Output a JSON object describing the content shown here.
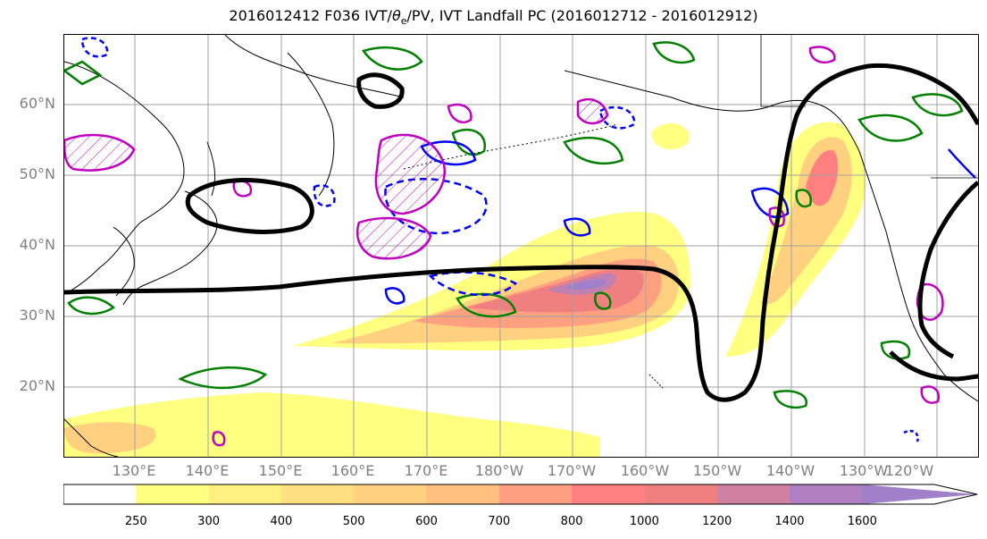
{
  "title_main": "2016012412 F036 IVT/",
  "title_theta": "θ",
  "title_sub": "e",
  "title_rest": "/PV, IVT Landfall PC (2016012712 - 2016012912)",
  "lat_labels": [
    "60°N",
    "50°N",
    "40°N",
    "30°N",
    "20°N"
  ],
  "lon_labels": [
    "130°E",
    "140°E",
    "150°E",
    "160°E",
    "170°E",
    "180°W",
    "170°W",
    "160°W",
    "150°W",
    "140°W",
    "130°W",
    "120°W"
  ],
  "colorbar": {
    "levels": [
      "250",
      "300",
      "400",
      "500",
      "600",
      "700",
      "800",
      "1000",
      "1200",
      "1400",
      "1600"
    ],
    "colors": [
      "#ffffff",
      "#ffff80",
      "#fff080",
      "#ffe080",
      "#ffd080",
      "#ffc080",
      "#ffa080",
      "#ff8080",
      "#f08080",
      "#d080a0",
      "#b080c0",
      "#a080c8"
    ]
  },
  "colors": {
    "land_outline": "#000000",
    "grid": "#a0a0a0",
    "pc_contour": "#000000",
    "theta_e": "#008000",
    "pv_positive": "#c000c0",
    "pv_negative": "#0000ff"
  }
}
